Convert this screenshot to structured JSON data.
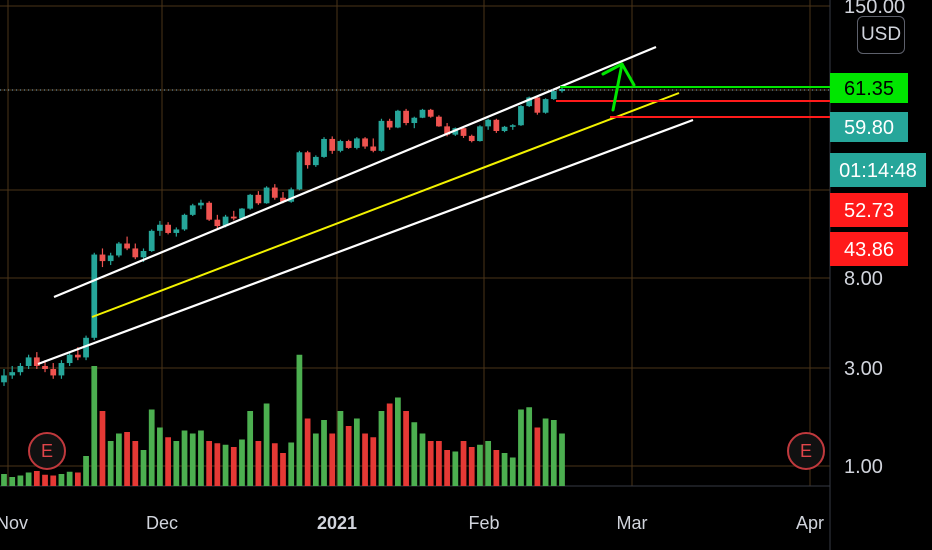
{
  "currency": "USD",
  "events": [
    {
      "label": "E"
    },
    {
      "label": "E"
    }
  ],
  "colors": {
    "up": "#26a69a",
    "down": "#ef5350",
    "vol_up": "#4caf50",
    "vol_down": "#e53935",
    "grid": "#4a3418",
    "channel": "#ffffff",
    "midline": "#f2f200",
    "target_line": "#00e600",
    "support_line": "#ff1a1a"
  },
  "chart_data": {
    "type": "candlestick",
    "scale": "log",
    "y_ticks": [
      "150.00",
      "8.00",
      "3.00",
      "1.00"
    ],
    "x_ticks": [
      {
        "label": "Nov",
        "bold": false
      },
      {
        "label": "Dec",
        "bold": false
      },
      {
        "label": "2021",
        "bold": true
      },
      {
        "label": "Feb",
        "bold": false
      },
      {
        "label": "Mar",
        "bold": false
      },
      {
        "label": "Apr",
        "bold": false
      }
    ],
    "price_tags": [
      {
        "label": "61.35",
        "kind": "last-price"
      },
      {
        "label": "59.80",
        "kind": "level"
      },
      {
        "label": "01:14:48",
        "kind": "countdown"
      },
      {
        "label": "52.73",
        "kind": "level"
      },
      {
        "label": "43.86",
        "kind": "level"
      }
    ],
    "candles": [
      [
        2.6,
        3.0,
        2.5,
        2.8,
        16
      ],
      [
        2.8,
        3.1,
        2.7,
        2.9,
        12
      ],
      [
        2.9,
        3.2,
        2.8,
        3.1,
        14
      ],
      [
        3.1,
        3.5,
        3.0,
        3.4,
        18
      ],
      [
        3.4,
        3.6,
        3.0,
        3.1,
        20
      ],
      [
        3.1,
        3.3,
        2.9,
        3.0,
        15
      ],
      [
        3.0,
        3.2,
        2.7,
        2.8,
        14
      ],
      [
        2.8,
        3.3,
        2.7,
        3.2,
        16
      ],
      [
        3.2,
        3.6,
        3.1,
        3.5,
        19
      ],
      [
        3.5,
        3.8,
        3.3,
        3.4,
        18
      ],
      [
        3.4,
        4.3,
        3.3,
        4.2,
        40
      ],
      [
        4.2,
        10.5,
        4.1,
        10.3,
        160
      ],
      [
        10.3,
        11.0,
        9.0,
        9.6,
        100
      ],
      [
        9.6,
        10.5,
        9.2,
        10.2,
        60
      ],
      [
        10.2,
        11.8,
        10.0,
        11.6,
        70
      ],
      [
        11.6,
        12.5,
        10.8,
        11.0,
        72
      ],
      [
        11.0,
        11.6,
        9.8,
        10.0,
        60
      ],
      [
        10.0,
        11.0,
        9.5,
        10.7,
        48
      ],
      [
        10.7,
        13.5,
        10.6,
        13.3,
        102
      ],
      [
        13.3,
        14.8,
        12.6,
        14.2,
        78
      ],
      [
        14.2,
        14.6,
        12.8,
        13.0,
        65
      ],
      [
        13.0,
        13.8,
        12.5,
        13.5,
        60
      ],
      [
        13.5,
        16.0,
        13.3,
        15.8,
        74
      ],
      [
        15.8,
        17.8,
        15.6,
        17.5,
        70
      ],
      [
        17.5,
        18.6,
        16.8,
        18.0,
        74
      ],
      [
        18.0,
        18.3,
        14.8,
        15.0,
        60
      ],
      [
        15.0,
        15.8,
        13.5,
        14.0,
        57
      ],
      [
        14.0,
        15.8,
        13.8,
        15.5,
        55
      ],
      [
        15.5,
        16.5,
        14.9,
        15.2,
        52
      ],
      [
        15.2,
        17.0,
        15.1,
        16.9,
        62
      ],
      [
        16.9,
        19.8,
        16.7,
        19.6,
        100
      ],
      [
        19.6,
        20.4,
        17.6,
        17.9,
        60
      ],
      [
        17.9,
        21.5,
        17.8,
        21.2,
        110
      ],
      [
        21.2,
        22.0,
        18.6,
        19.0,
        57
      ],
      [
        19.0,
        20.2,
        17.9,
        18.2,
        44
      ],
      [
        18.2,
        21.2,
        18.0,
        20.8,
        58
      ],
      [
        20.8,
        31.5,
        20.6,
        31.0,
        175
      ],
      [
        31.0,
        31.5,
        26.0,
        27.0,
        90
      ],
      [
        27.0,
        30.0,
        26.5,
        29.5,
        70
      ],
      [
        29.5,
        36.5,
        29.2,
        35.8,
        88
      ],
      [
        35.8,
        36.8,
        30.5,
        31.5,
        70
      ],
      [
        31.5,
        35.5,
        31.0,
        35.0,
        100
      ],
      [
        35.0,
        35.5,
        32.2,
        32.5,
        80
      ],
      [
        32.5,
        36.5,
        32.0,
        36.0,
        90
      ],
      [
        36.0,
        36.5,
        32.2,
        33.0,
        70
      ],
      [
        33.0,
        36.0,
        31.0,
        31.5,
        65
      ],
      [
        31.5,
        44.5,
        31.2,
        43.5,
        100
      ],
      [
        43.5,
        44.5,
        39.5,
        40.5,
        110
      ],
      [
        40.5,
        49.0,
        40.2,
        48.5,
        118
      ],
      [
        48.5,
        49.5,
        41.5,
        42.5,
        100
      ],
      [
        42.5,
        45.5,
        40.2,
        45.0,
        85
      ],
      [
        45.0,
        49.5,
        44.8,
        49.0,
        70
      ],
      [
        49.0,
        49.5,
        45.0,
        45.5,
        60
      ],
      [
        45.5,
        46.2,
        40.8,
        41.0,
        60
      ],
      [
        41.0,
        42.5,
        36.8,
        37.5,
        48
      ],
      [
        37.5,
        40.5,
        37.0,
        40.2,
        46
      ],
      [
        40.2,
        41.0,
        36.2,
        37.0,
        60
      ],
      [
        37.0,
        37.5,
        34.5,
        35.0,
        52
      ],
      [
        35.0,
        41.5,
        34.8,
        41.0,
        55
      ],
      [
        41.0,
        44.5,
        39.5,
        44.0,
        60
      ],
      [
        44.0,
        44.5,
        38.2,
        39.0,
        48
      ],
      [
        39.0,
        41.2,
        38.5,
        40.8,
        44
      ],
      [
        40.8,
        42.0,
        39.5,
        41.5,
        38
      ],
      [
        41.5,
        51.5,
        41.2,
        51.0,
        102
      ],
      [
        51.0,
        56.5,
        50.5,
        56.0,
        105
      ],
      [
        56.0,
        56.5,
        46.5,
        47.5,
        78
      ],
      [
        47.5,
        55.5,
        47.0,
        55.0,
        90
      ],
      [
        55.0,
        60.5,
        54.5,
        60.0,
        88
      ],
      [
        60.0,
        62.5,
        59.0,
        61.35,
        70
      ]
    ]
  }
}
